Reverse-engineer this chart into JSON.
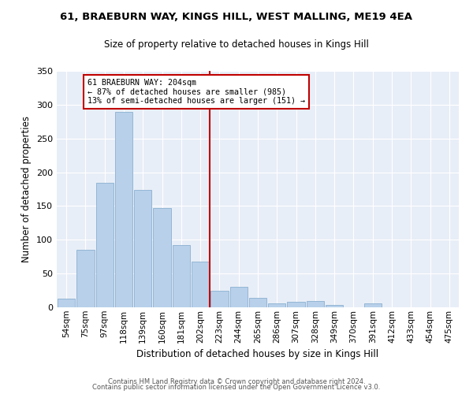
{
  "title1": "61, BRAEBURN WAY, KINGS HILL, WEST MALLING, ME19 4EA",
  "title2": "Size of property relative to detached houses in Kings Hill",
  "xlabel": "Distribution of detached houses by size in Kings Hill",
  "ylabel": "Number of detached properties",
  "bar_color": "#b8d0ea",
  "bar_edge_color": "#8ab0d0",
  "bin_labels": [
    "54sqm",
    "75sqm",
    "97sqm",
    "118sqm",
    "139sqm",
    "160sqm",
    "181sqm",
    "202sqm",
    "223sqm",
    "244sqm",
    "265sqm",
    "286sqm",
    "307sqm",
    "328sqm",
    "349sqm",
    "370sqm",
    "391sqm",
    "412sqm",
    "433sqm",
    "454sqm",
    "475sqm"
  ],
  "bar_heights": [
    13,
    85,
    184,
    289,
    174,
    147,
    92,
    68,
    25,
    30,
    14,
    6,
    8,
    9,
    3,
    0,
    6,
    0,
    0,
    0,
    0
  ],
  "vline_color": "#c00000",
  "annotation_text": "61 BRAEBURN WAY: 204sqm\n← 87% of detached houses are smaller (985)\n13% of semi-detached houses are larger (151) →",
  "ylim": [
    0,
    350
  ],
  "yticks": [
    0,
    50,
    100,
    150,
    200,
    250,
    300,
    350
  ],
  "bg_color": "#e8eef7",
  "footer1": "Contains HM Land Registry data © Crown copyright and database right 2024.",
  "footer2": "Contains public sector information licensed under the Open Government Licence v3.0."
}
